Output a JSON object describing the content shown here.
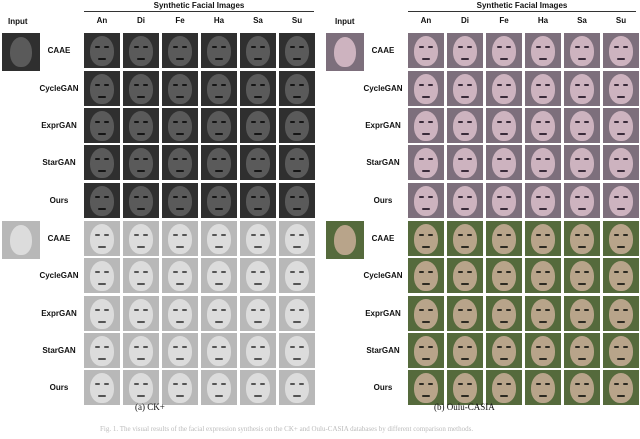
{
  "panels": [
    {
      "id": "a",
      "input_label": "Input",
      "synthetic_title": "Synthetic Facial Images",
      "columns": [
        "An",
        "Di",
        "Fe",
        "Ha",
        "Sa",
        "Su"
      ],
      "rows": [
        "CAAE",
        "CycleGAN",
        "ExprGAN",
        "StarGAN",
        "Ours",
        "CAAE",
        "CycleGAN",
        "ExprGAN",
        "StarGAN",
        "Ours"
      ],
      "caption": "(a)  CK+"
    },
    {
      "id": "b",
      "input_label": "Input",
      "synthetic_title": "Synthetic Facial Images",
      "columns": [
        "An",
        "Di",
        "Fe",
        "Ha",
        "Sa",
        "Su"
      ],
      "rows": [
        "CAAE",
        "CycleGAN",
        "ExprGAN",
        "StarGAN",
        "Ours",
        "CAAE",
        "CycleGAN",
        "ExprGAN",
        "StarGAN",
        "Ours"
      ],
      "caption": "(b)  Oulu-CASIA"
    }
  ],
  "figure_caption": "Fig. 1.  The visual results of the facial expression synthesis on the CK+ and Oulu-CASIA databases by different comparison methods."
}
